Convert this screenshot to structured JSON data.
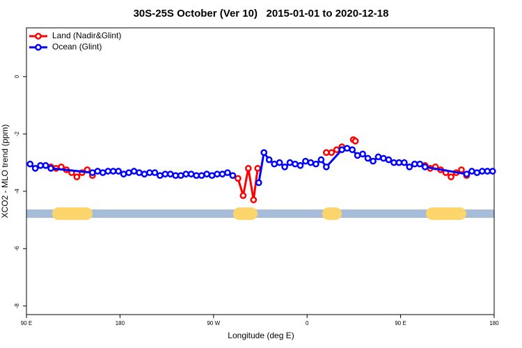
{
  "chart_data": {
    "type": "line",
    "title": "30S-25S October (Ver 10)   2015-01-01 to 2020-12-18",
    "x_label": "Longitude (deg E)",
    "y_label": "XCO2 - MLO trend (ppm)",
    "xlim": [
      90,
      540
    ],
    "ylim": [
      -8.3,
      1.7
    ],
    "xticks": [
      {
        "value": 90,
        "label": "90 E"
      },
      180,
      {
        "value": 270,
        "label": "90 W"
      },
      {
        "value": 360,
        "label": "0"
      },
      {
        "value": 450,
        "label": "90 E"
      },
      {
        "value": 540,
        "label": "180"
      }
    ],
    "yticks": [
      0,
      -2,
      -4,
      -6,
      -8
    ],
    "grid": false,
    "legend": "top-left",
    "series": [
      {
        "name": "Land (Nadir&Glint)",
        "color": "#ff0000",
        "x": [
          113.5,
          118.5,
          123.5,
          128.5,
          133.5,
          138.5,
          143.5,
          148.5,
          153.5,
          null,
          293.5,
          298.5,
          303.5,
          308.5,
          312.5,
          null,
          378.5,
          383.5,
          388.5,
          393.5,
          null,
          404.5,
          406.5,
          null,
          473.5,
          478.5,
          483.5,
          488.5,
          493.5,
          498.5,
          503.5,
          508.5,
          513.5
        ],
        "values": [
          -3.15,
          -3.2,
          -3.15,
          -3.25,
          -3.35,
          -3.5,
          -3.35,
          -3.25,
          -3.45,
          null,
          -3.55,
          -4.15,
          -3.2,
          -4.3,
          -3.2,
          null,
          -2.65,
          -2.65,
          -2.55,
          -2.45,
          null,
          -2.2,
          -2.25,
          null,
          -3.1,
          -3.2,
          -3.15,
          -3.25,
          -3.35,
          -3.5,
          -3.35,
          -3.25,
          -3.45
        ]
      },
      {
        "name": "Ocean (Glint)",
        "color": "#0000ff",
        "x": [
          93.5,
          98.5,
          103.5,
          108.5,
          113.5,
          153.5,
          158.5,
          163.5,
          168.5,
          173.5,
          178.5,
          183.5,
          188.5,
          193.5,
          198.5,
          203.5,
          208.5,
          213.5,
          218.5,
          223.5,
          228.5,
          233.5,
          238.5,
          243.5,
          248.5,
          253.5,
          258.5,
          263.5,
          268.5,
          273.5,
          278.5,
          283.5,
          288.5,
          null,
          313.5,
          318.5,
          323.5,
          328.5,
          333.5,
          338.5,
          343.5,
          348.5,
          353.5,
          358.5,
          363.5,
          368.5,
          373.5,
          378.5,
          393.5,
          398.5,
          403.5,
          408.5,
          413.5,
          418.5,
          423.5,
          428.5,
          433.5,
          438.5,
          443.5,
          448.5,
          453.5,
          458.5,
          463.5,
          468.5,
          473.5,
          513.5,
          518.5,
          523.5,
          528.5,
          533.5,
          538.5
        ],
        "values": [
          -3.05,
          -3.2,
          -3.1,
          -3.1,
          -3.2,
          -3.35,
          -3.3,
          -3.35,
          -3.3,
          -3.3,
          -3.3,
          -3.4,
          -3.35,
          -3.3,
          -3.35,
          -3.4,
          -3.35,
          -3.35,
          -3.45,
          -3.4,
          -3.4,
          -3.45,
          -3.45,
          -3.4,
          -3.4,
          -3.45,
          -3.45,
          -3.4,
          -3.45,
          -3.4,
          -3.4,
          -3.35,
          -3.45,
          null,
          -3.7,
          -2.65,
          -2.9,
          -3.05,
          -3.0,
          -3.15,
          -3.0,
          -3.05,
          -3.1,
          -2.95,
          -3.0,
          -3.05,
          -2.9,
          -3.15,
          -2.55,
          -2.5,
          -2.55,
          -2.75,
          -2.7,
          -2.85,
          -2.95,
          -2.8,
          -2.85,
          -2.9,
          -3.0,
          -3.0,
          -3.0,
          -3.15,
          -3.05,
          -3.05,
          -3.15,
          -3.4,
          -3.3,
          -3.35,
          -3.3,
          -3.3,
          -3.3
        ]
      }
    ]
  }
}
